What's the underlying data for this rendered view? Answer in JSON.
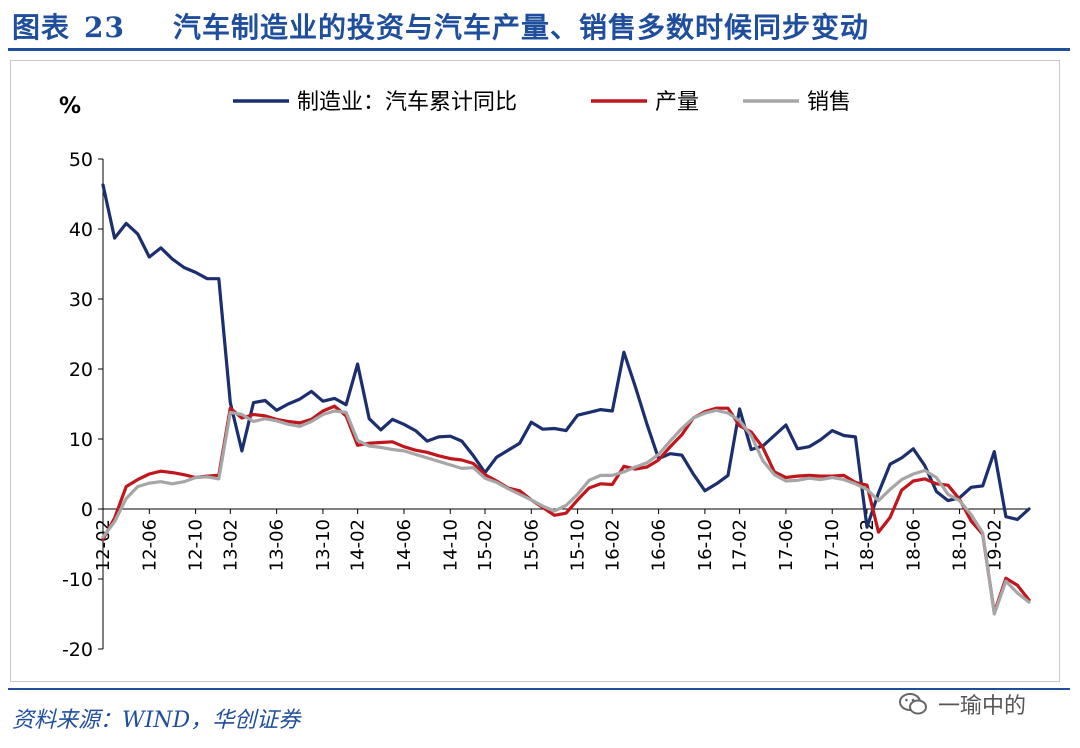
{
  "figure": {
    "label": "图表",
    "number": "23",
    "title": "汽车制造业的投资与汽车产量、销售多数时候同步变动",
    "source": "资料来源：WIND，华创证券",
    "watermark": "一瑜中的"
  },
  "colors": {
    "brand": "#1f4e9c",
    "series1": "#1b2f6e",
    "series2": "#c0161c",
    "series3": "#a6a6a6"
  },
  "chart_data": {
    "type": "line",
    "ylabel": "%",
    "ylim": [
      -20,
      50
    ],
    "yticks": [
      -20,
      -10,
      0,
      10,
      20,
      30,
      40,
      50
    ],
    "x_tick_labels": [
      "12-02",
      "12-06",
      "12-10",
      "13-02",
      "13-06",
      "13-10",
      "14-02",
      "14-06",
      "14-10",
      "15-02",
      "15-06",
      "15-10",
      "16-02",
      "16-06",
      "16-10",
      "17-02",
      "17-06",
      "17-10",
      "18-02",
      "18-06",
      "18-10",
      "19-02"
    ],
    "x": [
      "12-02",
      "12-03",
      "12-04",
      "12-05",
      "12-06",
      "12-07",
      "12-08",
      "12-09",
      "12-10",
      "12-11",
      "12-12",
      "13-02",
      "13-03",
      "13-04",
      "13-05",
      "13-06",
      "13-07",
      "13-08",
      "13-09",
      "13-10",
      "13-11",
      "13-12",
      "14-02",
      "14-03",
      "14-04",
      "14-05",
      "14-06",
      "14-07",
      "14-08",
      "14-09",
      "14-10",
      "14-11",
      "14-12",
      "15-02",
      "15-03",
      "15-04",
      "15-05",
      "15-06",
      "15-07",
      "15-08",
      "15-09",
      "15-10",
      "15-11",
      "15-12",
      "16-02",
      "16-03",
      "16-04",
      "16-05",
      "16-06",
      "16-07",
      "16-08",
      "16-09",
      "16-10",
      "16-11",
      "16-12",
      "17-02",
      "17-03",
      "17-04",
      "17-05",
      "17-06",
      "17-07",
      "17-08",
      "17-09",
      "17-10",
      "17-11",
      "17-12",
      "18-02",
      "18-03",
      "18-04",
      "18-05",
      "18-06",
      "18-07",
      "18-08",
      "18-09",
      "18-10",
      "18-11",
      "18-12",
      "19-02",
      "19-03",
      "19-04",
      "19-05"
    ],
    "legend_position": "top",
    "grid": false,
    "series": [
      {
        "name": "制造业：汽车累计同比",
        "values": [
          46.3,
          38.7,
          40.8,
          39.3,
          36.0,
          37.3,
          35.7,
          34.5,
          33.8,
          32.9,
          32.9,
          15.2,
          8.3,
          15.2,
          15.5,
          14.1,
          15.0,
          15.7,
          16.8,
          15.4,
          15.8,
          14.9,
          20.7,
          12.9,
          11.3,
          12.8,
          12.1,
          11.2,
          9.7,
          10.3,
          10.4,
          9.7,
          7.6,
          5.2,
          7.4,
          8.4,
          9.4,
          12.4,
          11.4,
          11.5,
          11.2,
          13.4,
          13.8,
          14.2,
          14.0,
          22.4,
          17.4,
          12.1,
          7.2,
          7.9,
          7.7,
          5.0,
          2.6,
          3.6,
          4.8,
          14.3,
          8.5,
          9.0,
          10.5,
          12.0,
          8.6,
          8.9,
          9.9,
          11.2,
          10.5,
          10.3,
          -2.6,
          2.3,
          6.4,
          7.3,
          8.6,
          6.2,
          2.5,
          1.2,
          1.6,
          3.1,
          3.3,
          8.2,
          -1.1,
          -1.5,
          0.0
        ]
      },
      {
        "name": "产量",
        "values": [
          -4.3,
          -1.3,
          3.2,
          4.2,
          5.0,
          5.4,
          5.2,
          4.9,
          4.5,
          4.7,
          4.8,
          14.4,
          13.0,
          13.5,
          13.3,
          12.8,
          12.5,
          12.3,
          12.8,
          14.0,
          14.7,
          13.3,
          9.1,
          9.4,
          9.5,
          9.6,
          8.9,
          8.4,
          8.1,
          7.6,
          7.2,
          7.0,
          6.5,
          4.9,
          4.0,
          3.0,
          2.6,
          1.3,
          0.2,
          -0.9,
          -0.6,
          1.3,
          3.0,
          3.6,
          3.5,
          6.1,
          5.7,
          6.0,
          7.0,
          8.9,
          10.6,
          13.0,
          13.9,
          14.4,
          14.4,
          11.9,
          11.0,
          8.8,
          5.3,
          4.5,
          4.7,
          4.8,
          4.7,
          4.7,
          4.8,
          3.8,
          3.4,
          -3.3,
          -1.2,
          2.7,
          4.0,
          4.3,
          3.6,
          3.4,
          1.4,
          -1.7,
          -3.6,
          -14.8,
          -9.9,
          -10.9,
          -13.0
        ]
      },
      {
        "name": "销售",
        "values": [
          -4.0,
          -1.8,
          1.5,
          3.2,
          3.7,
          3.9,
          3.6,
          3.9,
          4.5,
          4.6,
          4.3,
          13.8,
          13.5,
          12.5,
          12.9,
          12.6,
          12.1,
          11.8,
          12.5,
          13.5,
          14.0,
          13.8,
          9.8,
          9.0,
          8.8,
          8.5,
          8.3,
          7.8,
          7.3,
          6.8,
          6.3,
          5.8,
          5.9,
          4.4,
          3.8,
          2.9,
          2.1,
          1.3,
          0.4,
          -0.3,
          0.5,
          2.1,
          4.1,
          4.8,
          4.8,
          5.3,
          6.0,
          6.6,
          7.8,
          9.7,
          11.5,
          13.0,
          13.7,
          14.1,
          13.7,
          12.6,
          10.5,
          6.9,
          4.9,
          4.0,
          4.1,
          4.4,
          4.2,
          4.5,
          4.2,
          3.6,
          2.8,
          1.2,
          2.8,
          4.2,
          5.0,
          5.5,
          4.5,
          2.1,
          1.2,
          -0.8,
          -3.4,
          -15.0,
          -10.3,
          -12.0,
          -13.3
        ]
      }
    ]
  }
}
